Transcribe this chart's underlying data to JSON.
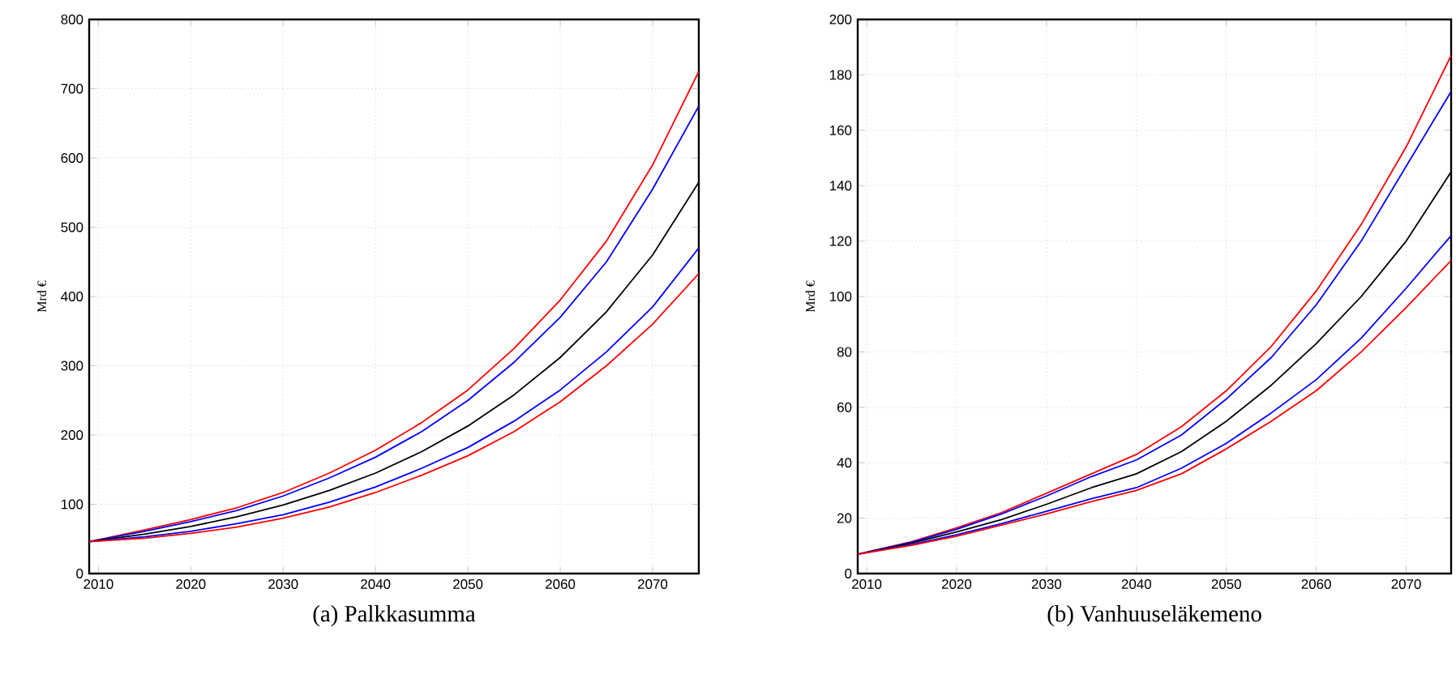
{
  "chart_data": [
    {
      "type": "line",
      "title": "(a) Palkkasumma",
      "ylabel": "Mrd €",
      "grid": true,
      "line_style": "solid",
      "marker": "none",
      "x": [
        2009,
        2015,
        2020,
        2025,
        2030,
        2035,
        2040,
        2045,
        2050,
        2055,
        2060,
        2065,
        2070,
        2075
      ],
      "xlim": [
        2009,
        2075
      ],
      "xticks": [
        2010,
        2020,
        2030,
        2040,
        2050,
        2060,
        2070
      ],
      "ylim": [
        0,
        800
      ],
      "yticks": [
        0,
        100,
        200,
        300,
        400,
        500,
        600,
        700,
        800
      ],
      "series": [
        {
          "color": "#ff0000",
          "values": [
            46,
            63,
            78,
            95,
            117,
            145,
            178,
            218,
            265,
            325,
            395,
            480,
            590,
            725
          ]
        },
        {
          "color": "#0000ff",
          "values": [
            46,
            61,
            75,
            91,
            112,
            138,
            168,
            205,
            250,
            305,
            370,
            450,
            555,
            675
          ]
        },
        {
          "color": "#000000",
          "values": [
            46,
            57,
            68,
            82,
            99,
            120,
            145,
            176,
            213,
            258,
            312,
            378,
            460,
            565
          ]
        },
        {
          "color": "#0000ff",
          "values": [
            46,
            53,
            61,
            72,
            85,
            103,
            125,
            152,
            182,
            220,
            265,
            320,
            385,
            470
          ]
        },
        {
          "color": "#ff0000",
          "values": [
            46,
            51,
            58,
            67,
            80,
            96,
            117,
            142,
            170,
            205,
            248,
            300,
            360,
            433
          ]
        }
      ]
    },
    {
      "type": "line",
      "title": "(b) Vanhuuseläkemeno",
      "ylabel": "Mrd €",
      "grid": true,
      "line_style": "solid",
      "marker": "none",
      "x": [
        2009,
        2015,
        2020,
        2025,
        2030,
        2035,
        2040,
        2045,
        2050,
        2055,
        2060,
        2065,
        2070,
        2075
      ],
      "xlim": [
        2009,
        2075
      ],
      "xticks": [
        2010,
        2020,
        2030,
        2040,
        2050,
        2060,
        2070
      ],
      "ylim": [
        0,
        200
      ],
      "yticks": [
        0,
        20,
        40,
        60,
        80,
        100,
        120,
        140,
        160,
        180,
        200
      ],
      "series": [
        {
          "color": "#ff0000",
          "values": [
            7,
            11.5,
            16.5,
            22,
            29,
            36,
            43,
            53,
            66,
            82,
            102,
            126,
            154,
            187
          ]
        },
        {
          "color": "#0000ff",
          "values": [
            7,
            11.3,
            16,
            21.5,
            28,
            35,
            41,
            50,
            63,
            78,
            97,
            120,
            147,
            174
          ]
        },
        {
          "color": "#000000",
          "values": [
            7,
            11,
            15,
            19.5,
            25,
            31,
            36,
            44,
            55,
            68,
            83,
            100,
            120,
            145
          ]
        },
        {
          "color": "#0000ff",
          "values": [
            7,
            10.5,
            14,
            18,
            22.5,
            27,
            31,
            38,
            47,
            58,
            70,
            85,
            103,
            122
          ]
        },
        {
          "color": "#ff0000",
          "values": [
            7,
            10.2,
            13.5,
            17.5,
            21.5,
            26,
            30,
            36,
            45,
            55,
            66,
            80,
            96,
            113
          ]
        }
      ]
    }
  ]
}
